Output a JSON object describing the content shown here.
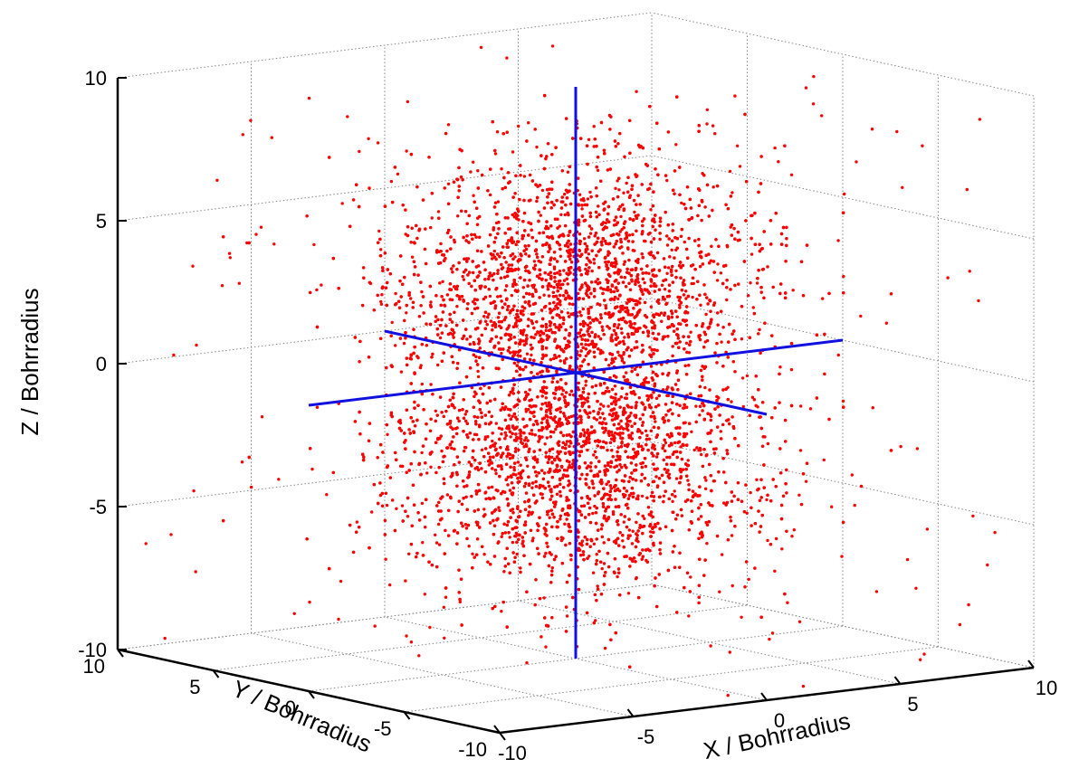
{
  "chart_data": {
    "type": "scatter",
    "dimensions": 3,
    "xlabel": "X / Bohrradius",
    "ylabel": "Y / Bohrradius",
    "zlabel": "Z / Bohrradius",
    "xlim": [
      -10,
      10
    ],
    "ylim": [
      -10,
      10
    ],
    "zlim": [
      -10,
      10
    ],
    "xticks": [
      "-10",
      "-5",
      "0",
      "5",
      "10"
    ],
    "yticks": [
      "-10",
      "-5",
      "0",
      "5",
      "10"
    ],
    "zticks": [
      "-10",
      "-5",
      "0",
      "5",
      "10"
    ],
    "grid": true,
    "series": [
      {
        "kind": "points",
        "color": "#ff0000",
        "distribution": "two lobes along Z (hydrogen 2p_z orbital density)",
        "lobe_centers_z": [
          3,
          -3
        ],
        "approx_count": 20000
      },
      {
        "kind": "axis-lines",
        "color": "#1010e0",
        "segments": [
          {
            "from": [
              0,
              0,
              -10
            ],
            "to": [
              0,
              0,
              10
            ]
          },
          {
            "from": [
              -10,
              0,
              0
            ],
            "to": [
              10,
              0,
              0
            ]
          },
          {
            "from": [
              0,
              -10,
              0
            ],
            "to": [
              0,
              10,
              0
            ]
          }
        ]
      }
    ]
  }
}
